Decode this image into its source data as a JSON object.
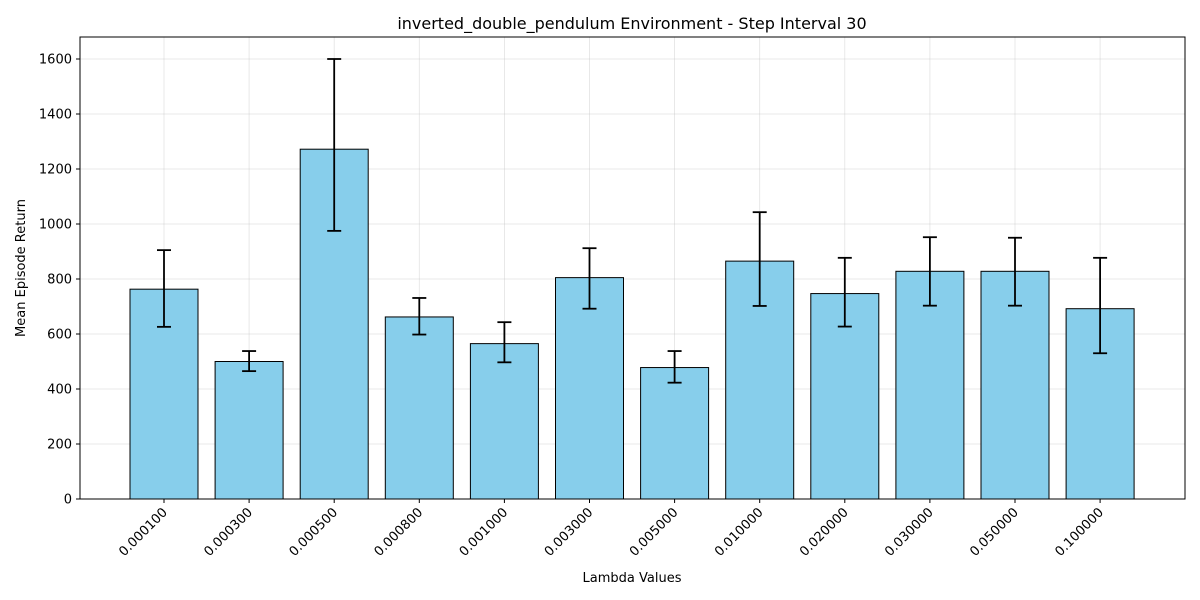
{
  "chart_data": {
    "type": "bar",
    "title": "inverted_double_pendulum Environment - Step Interval 30",
    "xlabel": "Lambda Values",
    "ylabel": "Mean Episode Return",
    "categories": [
      "0.000100",
      "0.000300",
      "0.000500",
      "0.000800",
      "0.001000",
      "0.003000",
      "0.005000",
      "0.010000",
      "0.020000",
      "0.030000",
      "0.050000",
      "0.100000"
    ],
    "values": [
      763,
      500,
      1272,
      662,
      565,
      805,
      478,
      865,
      747,
      828,
      828,
      692
    ],
    "error_low": [
      626,
      465,
      975,
      598,
      497,
      692,
      423,
      702,
      627,
      703,
      703,
      530
    ],
    "error_high": [
      905,
      538,
      1600,
      731,
      643,
      912,
      538,
      1043,
      877,
      952,
      950,
      877
    ],
    "ylim": [
      0,
      1680
    ],
    "yticks": [
      0,
      200,
      400,
      600,
      800,
      1000,
      1200,
      1400,
      1600
    ],
    "grid": true,
    "bar_color": "#87ceeb",
    "edge_color": "#000000"
  }
}
